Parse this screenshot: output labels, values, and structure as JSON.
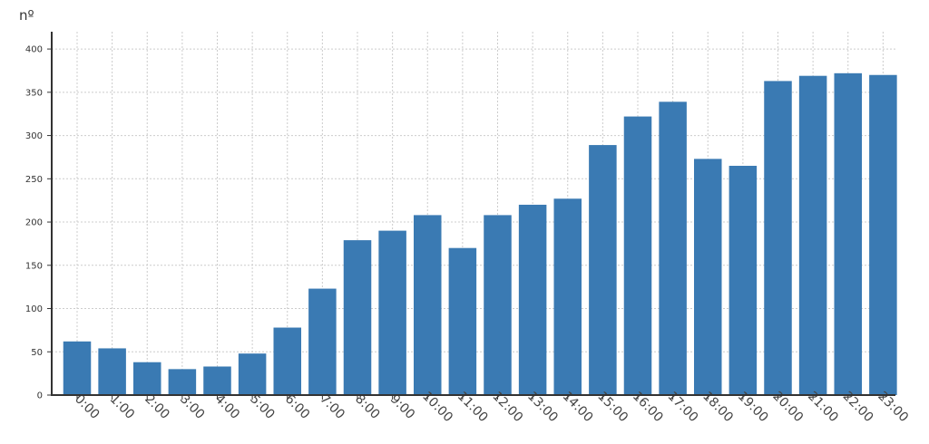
{
  "chart_data": {
    "type": "bar",
    "title": "",
    "xlabel": "",
    "ylabel": "nº",
    "ylim": [
      0,
      420
    ],
    "yticks": [
      0,
      50,
      100,
      150,
      200,
      250,
      300,
      350,
      400
    ],
    "grid": true,
    "bar_color": "#3a7ab3",
    "categories": [
      "0:00",
      "1:00",
      "2:00",
      "3:00",
      "4:00",
      "5:00",
      "6:00",
      "7:00",
      "8:00",
      "9:00",
      "10:00",
      "11:00",
      "12:00",
      "13:00",
      "14:00",
      "15:00",
      "16:00",
      "17:00",
      "18:00",
      "19:00",
      "20:00",
      "21:00",
      "22:00",
      "23:00"
    ],
    "values": [
      62,
      54,
      38,
      30,
      33,
      48,
      78,
      123,
      179,
      190,
      208,
      170,
      208,
      220,
      227,
      289,
      322,
      339,
      273,
      265,
      363,
      369,
      372,
      370
    ]
  }
}
